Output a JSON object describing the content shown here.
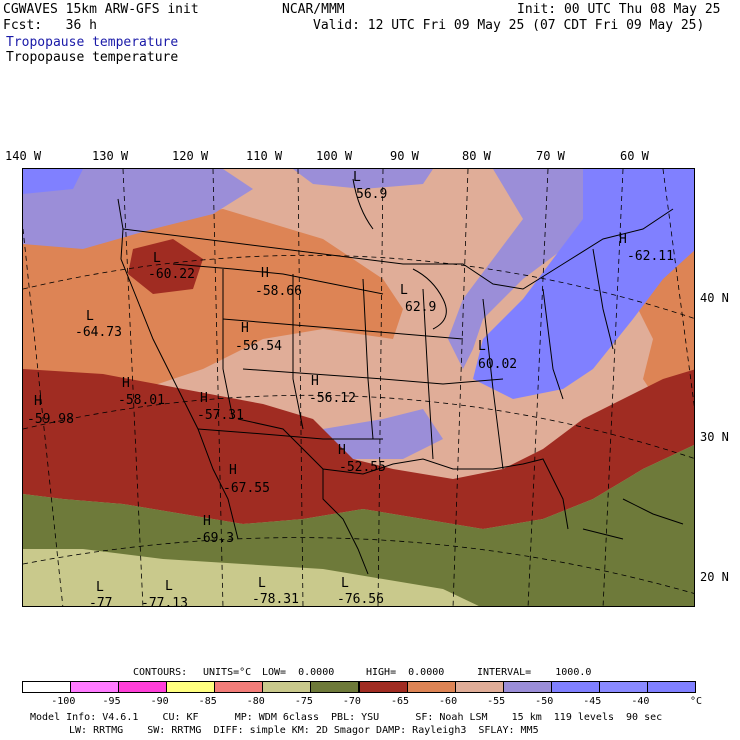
{
  "header": {
    "title_line1": "CGWAVES 15km ARW-GFS init",
    "fcst": "Fcst:   36 h",
    "org": "NCAR/MMM",
    "init": "Init: 00 UTC Thu 08 May 25",
    "valid": "Valid: 12 UTC Fri 09 May 25 (07 CDT Fri 09 May 25)",
    "field_title_blue": "Tropopause temperature",
    "field_title_black": "Tropopause temperature"
  },
  "map": {
    "longitude_labels": [
      "140 W",
      "130 W",
      "120 W",
      "110 W",
      "100 W",
      "90 W",
      "80 W",
      "70 W",
      "60 W"
    ],
    "latitude_labels": [
      "40 N",
      "30 N",
      "20 N"
    ],
    "extrema": [
      {
        "type": "L",
        "value": "56.9"
      },
      {
        "type": "L",
        "value": "-60.22"
      },
      {
        "type": "H",
        "value": "-58.66"
      },
      {
        "type": "L",
        "value": "-64.73"
      },
      {
        "type": "H",
        "value": "-56.54"
      },
      {
        "type": "L",
        "value": "62.9"
      },
      {
        "type": "H",
        "value": "-62.11"
      },
      {
        "type": "L",
        "value": "60.02"
      },
      {
        "type": "H",
        "value": "-59.98"
      },
      {
        "type": "H",
        "value": "-58.01"
      },
      {
        "type": "H",
        "value": "-57.31"
      },
      {
        "type": "H",
        "value": "-56.12"
      },
      {
        "type": "H",
        "value": "-52.55"
      },
      {
        "type": "H",
        "value": "-67.55"
      },
      {
        "type": "H",
        "value": "-69.3"
      },
      {
        "type": "L",
        "value": "-77"
      },
      {
        "type": "L",
        "value": "-77.13"
      },
      {
        "type": "L",
        "value": "-78.31"
      },
      {
        "type": "L",
        "value": "-76.56"
      }
    ]
  },
  "contour_info": {
    "contours": "CONTOURS:",
    "units": "UNITS=°C",
    "low": "LOW=  0.0000",
    "high": "HIGH=  0.0000",
    "interval": "INTERVAL=    1000.0"
  },
  "colorbar": {
    "colors": [
      "#ffffff",
      "#ff7bff",
      "#ff3fd8",
      "#ffff80",
      "#f27d79",
      "#c9c98c",
      "#6e7a3a",
      "#a02c22",
      "#dd8455",
      "#e0ad98",
      "#9b8ed8",
      "#8080ff",
      "#8a8aff",
      "#8080ff"
    ],
    "labels": [
      "-100",
      "-95",
      "-90",
      "-85",
      "-80",
      "-75",
      "-70",
      "-65",
      "-60",
      "-55",
      "-50",
      "-45",
      "-40"
    ],
    "unit": "°C"
  },
  "footer": {
    "line1": "Model Info: V4.6.1    CU: KF      MP: WDM 6class  PBL: YSU      SF: Noah LSM    15 km  119 levels  90 sec",
    "line2": "LW: RRTMG    SW: RRTMG  DIFF: simple KM: 2D Smagor DAMP: Rayleigh3  SFLAY: MM5"
  },
  "colors": {
    "lavender": "#9b8ed8",
    "blue": "#8080ff",
    "pink_tan": "#e0ad98",
    "orange": "#dd8455",
    "dark_red": "#a02c22",
    "olive": "#6e7a3a",
    "khaki": "#c9c98c"
  }
}
